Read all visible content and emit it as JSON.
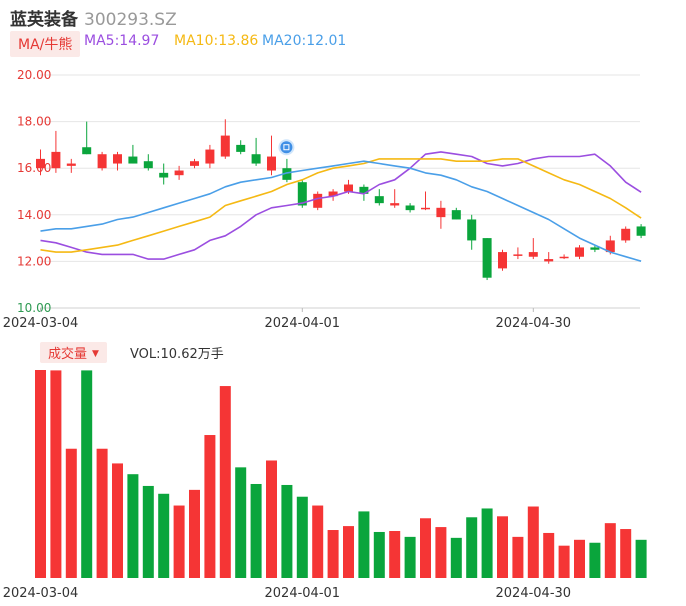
{
  "header": {
    "name": "蓝英装备",
    "code": "300293.SZ"
  },
  "indicator": {
    "label": "MA/牛熊"
  },
  "ma_legend": [
    {
      "label": "MA5:14.97",
      "color": "#9b4ee0"
    },
    {
      "label": "MA10:13.86",
      "color": "#f5b914"
    },
    {
      "label": "MA20:12.01",
      "color": "#4a9fe8"
    }
  ],
  "volume": {
    "label": "成交量",
    "value_label": "VOL:10.62万手"
  },
  "colors": {
    "up": "#f53535",
    "down": "#0aa53c",
    "grid": "#e6e6e6"
  },
  "chart_data": [
    {
      "type": "candlestick",
      "ylim": [
        10,
        20
      ],
      "yticks": [
        "20.00",
        "18.00",
        "16.00",
        "14.00",
        "12.00",
        "10.00"
      ],
      "xticks": [
        {
          "label": "2024-03-04",
          "index": 0
        },
        {
          "label": "2024-04-01",
          "index": 17
        },
        {
          "label": "2024-04-30",
          "index": 32
        }
      ],
      "candles": [
        {
          "o": 16.0,
          "h": 16.8,
          "l": 15.7,
          "c": 16.4
        },
        {
          "o": 16.0,
          "h": 17.6,
          "l": 15.8,
          "c": 16.7
        },
        {
          "o": 16.1,
          "h": 16.4,
          "l": 15.8,
          "c": 16.2
        },
        {
          "o": 16.9,
          "h": 18.0,
          "l": 16.6,
          "c": 16.6
        },
        {
          "o": 16.0,
          "h": 16.7,
          "l": 15.9,
          "c": 16.6
        },
        {
          "o": 16.2,
          "h": 16.7,
          "l": 15.9,
          "c": 16.6
        },
        {
          "o": 16.5,
          "h": 17.0,
          "l": 16.2,
          "c": 16.2
        },
        {
          "o": 16.3,
          "h": 16.6,
          "l": 15.9,
          "c": 16.0
        },
        {
          "o": 15.8,
          "h": 16.2,
          "l": 15.3,
          "c": 15.6
        },
        {
          "o": 15.7,
          "h": 16.1,
          "l": 15.5,
          "c": 15.9
        },
        {
          "o": 16.1,
          "h": 16.4,
          "l": 16.0,
          "c": 16.3
        },
        {
          "o": 16.2,
          "h": 17.0,
          "l": 16.0,
          "c": 16.8
        },
        {
          "o": 16.5,
          "h": 18.1,
          "l": 16.4,
          "c": 17.4
        },
        {
          "o": 17.0,
          "h": 17.2,
          "l": 16.6,
          "c": 16.7
        },
        {
          "o": 16.6,
          "h": 17.3,
          "l": 16.1,
          "c": 16.2
        },
        {
          "o": 15.9,
          "h": 17.4,
          "l": 15.7,
          "c": 16.5
        },
        {
          "o": 16.0,
          "h": 16.4,
          "l": 15.4,
          "c": 15.5
        },
        {
          "o": 15.4,
          "h": 15.5,
          "l": 14.3,
          "c": 14.4
        },
        {
          "o": 14.3,
          "h": 15.0,
          "l": 14.2,
          "c": 14.9
        },
        {
          "o": 14.8,
          "h": 15.1,
          "l": 14.6,
          "c": 15.0
        },
        {
          "o": 15.0,
          "h": 15.5,
          "l": 14.9,
          "c": 15.3
        },
        {
          "o": 15.2,
          "h": 15.3,
          "l": 14.6,
          "c": 14.9
        },
        {
          "o": 14.8,
          "h": 15.1,
          "l": 14.4,
          "c": 14.5
        },
        {
          "o": 14.4,
          "h": 15.1,
          "l": 14.3,
          "c": 14.5
        },
        {
          "o": 14.4,
          "h": 14.5,
          "l": 14.1,
          "c": 14.2
        },
        {
          "o": 14.3,
          "h": 15.0,
          "l": 14.2,
          "c": 14.3
        },
        {
          "o": 13.9,
          "h": 14.6,
          "l": 13.4,
          "c": 14.3
        },
        {
          "o": 14.2,
          "h": 14.3,
          "l": 13.8,
          "c": 13.8
        },
        {
          "o": 13.8,
          "h": 14.0,
          "l": 12.5,
          "c": 12.9
        },
        {
          "o": 13.0,
          "h": 13.0,
          "l": 11.2,
          "c": 11.3
        },
        {
          "o": 11.7,
          "h": 12.5,
          "l": 11.6,
          "c": 12.4
        },
        {
          "o": 12.3,
          "h": 12.6,
          "l": 12.1,
          "c": 12.3
        },
        {
          "o": 12.2,
          "h": 13.0,
          "l": 12.1,
          "c": 12.4
        },
        {
          "o": 12.0,
          "h": 12.4,
          "l": 11.9,
          "c": 12.1
        },
        {
          "o": 12.2,
          "h": 12.3,
          "l": 12.1,
          "c": 12.2
        },
        {
          "o": 12.2,
          "h": 12.7,
          "l": 12.1,
          "c": 12.6
        },
        {
          "o": 12.6,
          "h": 12.7,
          "l": 12.4,
          "c": 12.5
        },
        {
          "o": 12.4,
          "h": 13.1,
          "l": 12.3,
          "c": 12.9
        },
        {
          "o": 12.9,
          "h": 13.5,
          "l": 12.8,
          "c": 13.4
        },
        {
          "o": 13.5,
          "h": 13.6,
          "l": 13.0,
          "c": 13.1
        }
      ],
      "ma": {
        "MA5": [
          12.9,
          12.8,
          12.6,
          12.4,
          12.3,
          12.3,
          12.3,
          12.1,
          12.1,
          12.3,
          12.5,
          12.9,
          13.1,
          13.5,
          14.0,
          14.3,
          14.4,
          14.5,
          14.7,
          14.8,
          15.0,
          14.9,
          15.3,
          15.5,
          16.0,
          16.6,
          16.7,
          16.6,
          16.5,
          16.2,
          16.1,
          16.2,
          16.4,
          16.5,
          16.5,
          16.5,
          16.6,
          16.1,
          15.4,
          14.97
        ],
        "MA10": [
          12.5,
          12.4,
          12.4,
          12.5,
          12.6,
          12.7,
          12.9,
          13.1,
          13.3,
          13.5,
          13.7,
          13.9,
          14.4,
          14.6,
          14.8,
          15.0,
          15.3,
          15.5,
          15.8,
          16.0,
          16.1,
          16.2,
          16.4,
          16.4,
          16.4,
          16.4,
          16.4,
          16.3,
          16.3,
          16.3,
          16.4,
          16.4,
          16.1,
          15.8,
          15.5,
          15.3,
          15.0,
          14.7,
          14.3,
          13.86
        ],
        "MA20": [
          13.3,
          13.4,
          13.4,
          13.5,
          13.6,
          13.8,
          13.9,
          14.1,
          14.3,
          14.5,
          14.7,
          14.9,
          15.2,
          15.4,
          15.5,
          15.6,
          15.8,
          15.9,
          16.0,
          16.1,
          16.2,
          16.3,
          16.2,
          16.1,
          16.0,
          15.8,
          15.7,
          15.5,
          15.2,
          15.0,
          14.7,
          14.4,
          14.1,
          13.8,
          13.4,
          13.0,
          12.7,
          12.4,
          12.2,
          12.01
        ]
      }
    },
    {
      "type": "bar",
      "title": "成交量",
      "value_label": "VOL:10.62万手",
      "volumes": [
        10.62,
        10.6,
        6.6,
        10.6,
        6.6,
        5.85,
        5.3,
        4.7,
        4.3,
        3.7,
        4.5,
        7.3,
        9.8,
        5.65,
        4.8,
        6.0,
        4.75,
        4.15,
        3.7,
        2.45,
        2.65,
        3.4,
        2.35,
        2.4,
        2.1,
        3.05,
        2.6,
        2.05,
        3.1,
        3.55,
        3.15,
        2.1,
        3.65,
        2.3,
        1.65,
        1.95,
        1.8,
        2.8,
        2.5,
        1.95
      ],
      "volume_max": 10.62
    }
  ]
}
